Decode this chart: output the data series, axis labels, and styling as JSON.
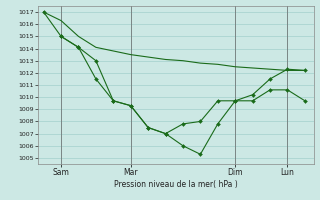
{
  "xlabel": "Pression niveau de la mer( hPa )",
  "ylim": [
    1004.5,
    1017.5
  ],
  "yticks": [
    1005,
    1006,
    1007,
    1008,
    1009,
    1010,
    1011,
    1012,
    1013,
    1014,
    1015,
    1016,
    1017
  ],
  "xtick_labels": [
    "Sam",
    "Mar",
    "Dim",
    "Lun"
  ],
  "xtick_positions": [
    1,
    5,
    11,
    14
  ],
  "x_total_min": -0.3,
  "x_total_max": 15.5,
  "bg_color": "#cce8e4",
  "grid_color": "#aad4d0",
  "line_color": "#1a6b1a",
  "line1_x": [
    0,
    1,
    2,
    3,
    4,
    5,
    6,
    7,
    8,
    9,
    10,
    11,
    12,
    13,
    14,
    15
  ],
  "line1_y": [
    1017,
    1016.3,
    1015,
    1014.1,
    1013.8,
    1013.5,
    1013.3,
    1013.1,
    1013.0,
    1012.8,
    1012.7,
    1012.5,
    1012.4,
    1012.3,
    1012.2,
    1012.2
  ],
  "line2_x": [
    0,
    1,
    2,
    3,
    4,
    5,
    6,
    7,
    8,
    9,
    10,
    11,
    12,
    13,
    14,
    15
  ],
  "line2_y": [
    1017,
    1015,
    1014.1,
    1013.0,
    1009.7,
    1009.3,
    1007.5,
    1007.0,
    1006.0,
    1005.3,
    1007.8,
    1009.7,
    1009.7,
    1010.6,
    1010.6,
    1009.7
  ],
  "line3_x": [
    1,
    2,
    3,
    4,
    5,
    6,
    7,
    8,
    9,
    10,
    11,
    12,
    13,
    14,
    15
  ],
  "line3_y": [
    1015,
    1014.1,
    1011.5,
    1009.7,
    1009.3,
    1007.5,
    1007.0,
    1007.8,
    1008.0,
    1009.7,
    1009.7,
    1010.2,
    1011.5,
    1012.3,
    1012.2
  ]
}
